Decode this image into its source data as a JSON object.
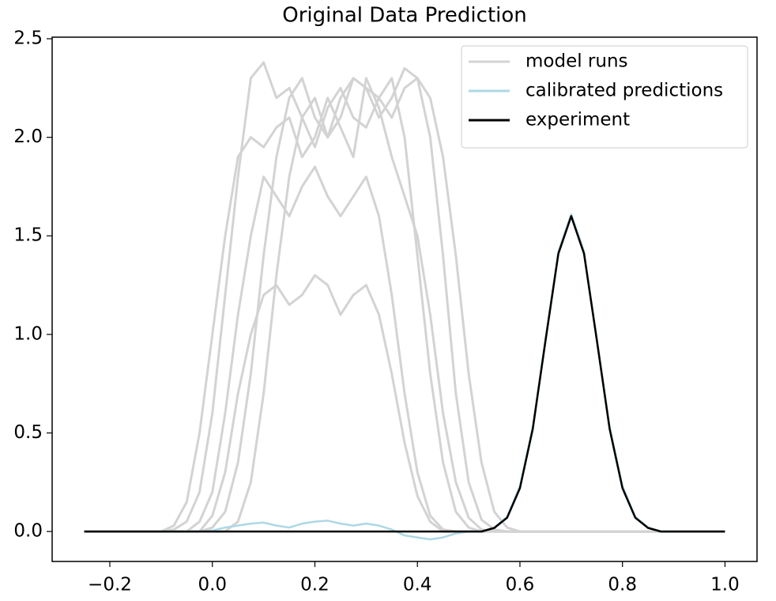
{
  "chart_data": {
    "type": "line",
    "title": "Original Data Prediction",
    "x": [
      -0.25,
      -0.225,
      -0.2,
      -0.175,
      -0.15,
      -0.125,
      -0.1,
      -0.075,
      -0.05,
      -0.025,
      0,
      0.025,
      0.05,
      0.075,
      0.1,
      0.125,
      0.15,
      0.175,
      0.2,
      0.225,
      0.25,
      0.275,
      0.3,
      0.325,
      0.35,
      0.375,
      0.4,
      0.425,
      0.45,
      0.475,
      0.5,
      0.525,
      0.55,
      0.575,
      0.6,
      0.625,
      0.65,
      0.675,
      0.7,
      0.725,
      0.75,
      0.775,
      0.8,
      0.825,
      0.85,
      0.875,
      0.9,
      0.925,
      0.95,
      0.975,
      1.0
    ],
    "series": [
      {
        "name": "model runs",
        "color": "#d3d3d3",
        "runs": [
          [
            0,
            0,
            0,
            0,
            0,
            0,
            0,
            0.01,
            0.05,
            0.2,
            0.6,
            1.2,
            1.8,
            2.3,
            2.38,
            2.2,
            2.25,
            2.1,
            1.95,
            2.15,
            2.25,
            2.1,
            2.05,
            2.2,
            2.3,
            2.0,
            1.4,
            0.8,
            0.35,
            0.1,
            0.02,
            0,
            0,
            0,
            0,
            0,
            0,
            0,
            0,
            0,
            0,
            0,
            0,
            0,
            0,
            0,
            0,
            0,
            0,
            0,
            0
          ],
          [
            0,
            0,
            0,
            0,
            0,
            0,
            0,
            0,
            0,
            0,
            0.02,
            0.1,
            0.35,
            0.8,
            1.4,
            1.9,
            2.2,
            2.3,
            2.1,
            2.0,
            2.2,
            2.3,
            2.25,
            2.1,
            2.2,
            2.35,
            2.3,
            2.0,
            1.4,
            0.7,
            0.25,
            0.06,
            0.01,
            0,
            0,
            0,
            0,
            0,
            0,
            0,
            0,
            0,
            0,
            0,
            0,
            0,
            0,
            0,
            0,
            0,
            0
          ],
          [
            0,
            0,
            0,
            0,
            0,
            0,
            0,
            0,
            0,
            0.05,
            0.2,
            0.6,
            1.1,
            1.5,
            1.8,
            1.7,
            1.6,
            1.75,
            1.85,
            1.7,
            1.6,
            1.7,
            1.8,
            1.6,
            1.2,
            0.7,
            0.3,
            0.08,
            0.01,
            0,
            0,
            0,
            0,
            0,
            0,
            0,
            0,
            0,
            0,
            0,
            0,
            0,
            0,
            0,
            0,
            0,
            0,
            0,
            0,
            0,
            0
          ],
          [
            0,
            0,
            0,
            0,
            0,
            0,
            0,
            0.03,
            0.15,
            0.5,
            1.0,
            1.5,
            1.9,
            2.0,
            1.95,
            2.05,
            2.1,
            1.9,
            2.0,
            2.2,
            2.05,
            1.9,
            2.3,
            2.15,
            1.9,
            1.7,
            1.5,
            1.1,
            0.6,
            0.25,
            0.07,
            0.01,
            0,
            0,
            0,
            0,
            0,
            0,
            0,
            0,
            0,
            0,
            0,
            0,
            0,
            0,
            0,
            0,
            0,
            0,
            0
          ],
          [
            0,
            0,
            0,
            0,
            0,
            0,
            0,
            0,
            0,
            0,
            0,
            0,
            0.05,
            0.25,
            0.7,
            1.3,
            1.8,
            2.1,
            2.2,
            2.0,
            2.1,
            2.3,
            2.25,
            2.2,
            2.1,
            2.25,
            2.3,
            2.2,
            1.9,
            1.4,
            0.8,
            0.35,
            0.1,
            0.02,
            0,
            0,
            0,
            0,
            0,
            0,
            0,
            0,
            0,
            0,
            0,
            0,
            0,
            0,
            0,
            0,
            0
          ],
          [
            0,
            0,
            0,
            0,
            0,
            0,
            0,
            0,
            0,
            0,
            0.08,
            0.3,
            0.7,
            1.0,
            1.2,
            1.25,
            1.15,
            1.2,
            1.3,
            1.25,
            1.1,
            1.2,
            1.25,
            1.1,
            0.8,
            0.45,
            0.18,
            0.05,
            0,
            0,
            0,
            0,
            0,
            0,
            0,
            0,
            0,
            0,
            0,
            0,
            0,
            0,
            0,
            0,
            0,
            0,
            0,
            0,
            0,
            0,
            0
          ]
        ]
      },
      {
        "name": "calibrated predictions",
        "color": "#add8e6",
        "runs": [
          [
            0,
            0,
            0,
            0,
            0,
            0,
            0,
            0,
            0,
            0,
            0.005,
            0.02,
            0.03,
            0.04,
            0.045,
            0.03,
            0.02,
            0.04,
            0.05,
            0.055,
            0.04,
            0.03,
            0.04,
            0.03,
            0.01,
            -0.02,
            -0.03,
            -0.04,
            -0.03,
            -0.01,
            0,
            0,
            0.02,
            0.075,
            0.23,
            0.53,
            0.98,
            1.42,
            1.61,
            1.42,
            0.98,
            0.53,
            0.23,
            0.075,
            0.02,
            0,
            0,
            0,
            0,
            0,
            0
          ]
        ]
      },
      {
        "name": "experiment",
        "color": "#000000",
        "runs": [
          [
            0,
            0,
            0,
            0,
            0,
            0,
            0,
            0,
            0,
            0,
            0,
            0,
            0,
            0,
            0,
            0,
            0,
            0,
            0,
            0,
            0,
            0,
            0,
            0,
            0,
            0,
            0,
            0,
            0,
            0,
            0,
            0,
            0.018,
            0.07,
            0.22,
            0.52,
            0.97,
            1.41,
            1.6,
            1.41,
            0.97,
            0.52,
            0.22,
            0.07,
            0.018,
            0,
            0,
            0,
            0,
            0,
            0
          ]
        ]
      }
    ],
    "xlim": [
      -0.3125,
      1.0625
    ],
    "ylim": [
      -0.152,
      2.508
    ],
    "xticks": [
      {
        "value": -0.2,
        "label": "−0.2"
      },
      {
        "value": 0,
        "label": "0.0"
      },
      0.2,
      0.4,
      0.6,
      0.8,
      {
        "value": 1,
        "label": "1.0"
      }
    ],
    "yticks": [
      {
        "value": 0,
        "label": "0.0"
      },
      0.5,
      {
        "value": 1,
        "label": "1.0"
      },
      1.5,
      {
        "value": 2,
        "label": "2.0"
      },
      2.5
    ],
    "legend": "upper right"
  }
}
